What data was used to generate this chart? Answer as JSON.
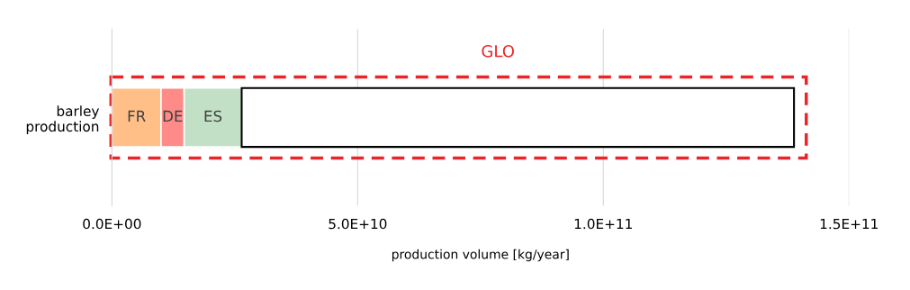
{
  "chart_data": {
    "type": "bar",
    "orientation": "horizontal",
    "stacked": true,
    "categories": [
      "barley\nproduction"
    ],
    "series": [
      {
        "name": "FR",
        "color": "#ffbf86",
        "values": [
          10000000000.0
        ]
      },
      {
        "name": "DE",
        "color": "#ff8b88",
        "values": [
          4700000000.0
        ]
      },
      {
        "name": "ES",
        "color": "#c2e0c6",
        "values": [
          11700000000.0
        ]
      },
      {
        "color": "#ffffff",
        "values": [
          112400000000.0
        ]
      }
    ],
    "xlabel": "production volume [kg/year]",
    "xlim": [
      0,
      150000000000.0
    ],
    "xticks": [
      {
        "value": 0,
        "label": "0.0E+00"
      },
      {
        "value": 50000000000.0,
        "label": "5.0E+10"
      },
      {
        "value": 100000000000.0,
        "label": "1.0E+11"
      },
      {
        "value": 150000000000.0,
        "label": "1.5E+11"
      }
    ],
    "grid": "x",
    "legend": false,
    "annotations": [
      "GLO"
    ]
  }
}
